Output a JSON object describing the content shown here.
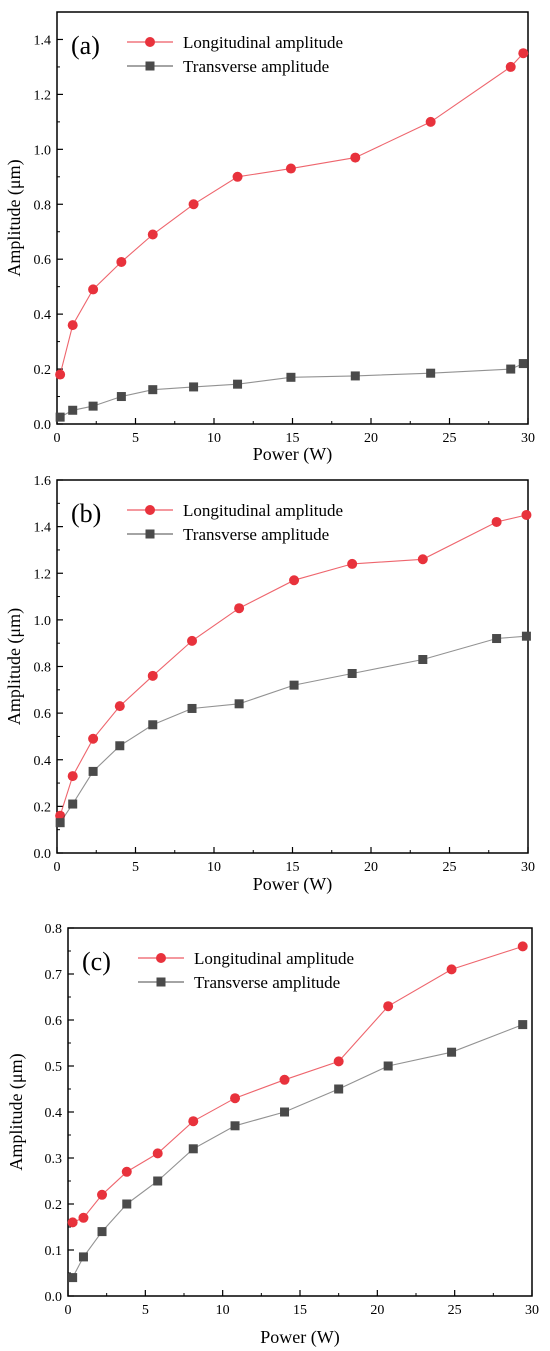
{
  "chart_data": [
    {
      "type": "line",
      "panel_label": "(a)",
      "xlabel": "Power (W)",
      "ylabel": "Amplitude (μm)",
      "xlim": [
        0,
        30
      ],
      "ylim": [
        0,
        1.5
      ],
      "xticks": [
        "0",
        "5",
        "10",
        "15",
        "20",
        "25",
        "30"
      ],
      "yticks": [
        "0.0",
        "0.2",
        "0.4",
        "0.6",
        "0.8",
        "1.0",
        "1.2",
        "1.4"
      ],
      "legend_position": "top-left",
      "series": [
        {
          "name": "Longitudinal amplitude",
          "color": "#e8323c",
          "marker": "circle",
          "x": [
            0.2,
            1.0,
            2.3,
            4.1,
            6.1,
            8.7,
            11.5,
            14.9,
            19.0,
            23.8,
            28.9,
            29.7
          ],
          "y": [
            0.18,
            0.36,
            0.49,
            0.59,
            0.69,
            0.8,
            0.9,
            0.93,
            0.97,
            1.1,
            1.3,
            1.35
          ]
        },
        {
          "name": "Transverse amplitude",
          "color": "#4a4a4a",
          "marker": "square",
          "x": [
            0.2,
            1.0,
            2.3,
            4.1,
            6.1,
            8.7,
            11.5,
            14.9,
            19.0,
            23.8,
            28.9,
            29.7
          ],
          "y": [
            0.025,
            0.05,
            0.065,
            0.1,
            0.125,
            0.135,
            0.145,
            0.17,
            0.175,
            0.185,
            0.2,
            0.22
          ]
        }
      ]
    },
    {
      "type": "line",
      "panel_label": "(b)",
      "xlabel": "Power (W)",
      "ylabel": "Amplitude (μm)",
      "xlim": [
        0,
        30
      ],
      "ylim": [
        0,
        1.6
      ],
      "xticks": [
        "0",
        "5",
        "10",
        "15",
        "20",
        "25",
        "30"
      ],
      "yticks": [
        "0.0",
        "0.2",
        "0.4",
        "0.6",
        "0.8",
        "1.0",
        "1.2",
        "1.4",
        "1.6"
      ],
      "legend_position": "top-left",
      "series": [
        {
          "name": "Longitudinal amplitude",
          "color": "#e8323c",
          "marker": "circle",
          "x": [
            0.2,
            1.0,
            2.3,
            4.0,
            6.1,
            8.6,
            11.6,
            15.1,
            18.8,
            23.3,
            28.0,
            29.9
          ],
          "y": [
            0.16,
            0.33,
            0.49,
            0.63,
            0.76,
            0.91,
            1.05,
            1.17,
            1.24,
            1.26,
            1.42,
            1.45
          ]
        },
        {
          "name": "Transverse amplitude",
          "color": "#4a4a4a",
          "marker": "square",
          "x": [
            0.2,
            1.0,
            2.3,
            4.0,
            6.1,
            8.6,
            11.6,
            15.1,
            18.8,
            23.3,
            28.0,
            29.9
          ],
          "y": [
            0.13,
            0.21,
            0.35,
            0.46,
            0.55,
            0.62,
            0.64,
            0.72,
            0.77,
            0.83,
            0.92,
            0.93
          ]
        }
      ]
    },
    {
      "type": "line",
      "panel_label": "(c)",
      "xlabel": "Power (W)",
      "ylabel": "Amplitude (μm)",
      "xlim": [
        0,
        30
      ],
      "ylim": [
        0,
        0.8
      ],
      "xticks": [
        "0",
        "5",
        "10",
        "15",
        "20",
        "25",
        "30"
      ],
      "yticks": [
        "0.0",
        "0.1",
        "0.2",
        "0.3",
        "0.4",
        "0.5",
        "0.6",
        "0.7",
        "0.8"
      ],
      "legend_position": "top-left",
      "series": [
        {
          "name": "Longitudinal amplitude",
          "color": "#e8323c",
          "marker": "circle",
          "x": [
            0.3,
            1.0,
            2.2,
            3.8,
            5.8,
            8.1,
            10.8,
            14.0,
            17.5,
            20.7,
            24.8,
            29.4
          ],
          "y": [
            0.16,
            0.17,
            0.22,
            0.27,
            0.31,
            0.38,
            0.43,
            0.47,
            0.51,
            0.63,
            0.71,
            0.76
          ]
        },
        {
          "name": "Transverse amplitude",
          "color": "#4a4a4a",
          "marker": "square",
          "x": [
            0.3,
            1.0,
            2.2,
            3.8,
            5.8,
            8.1,
            10.8,
            14.0,
            17.5,
            20.7,
            24.8,
            29.4
          ],
          "y": [
            0.04,
            0.085,
            0.14,
            0.2,
            0.25,
            0.32,
            0.37,
            0.4,
            0.45,
            0.5,
            0.53,
            0.59
          ]
        }
      ]
    }
  ]
}
